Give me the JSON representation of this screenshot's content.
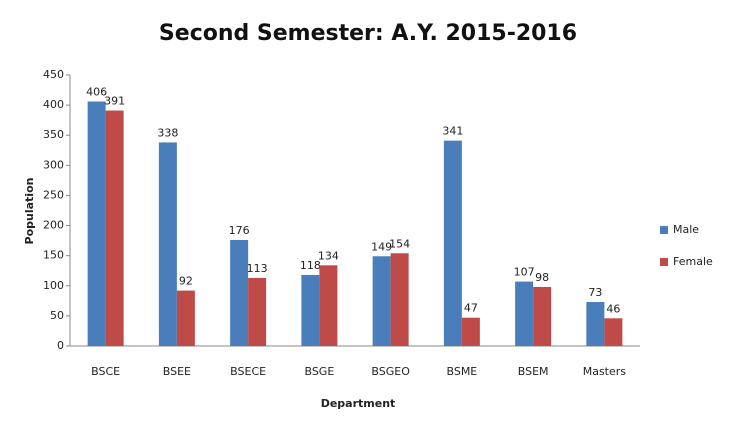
{
  "chart_data": {
    "type": "bar",
    "title": "Second Semester: A.Y. 2015-2016",
    "x_label": "Department",
    "y_label": "Population",
    "categories": [
      "BSCE",
      "BSEE",
      "BSECE",
      "BSGE",
      "BSGEO",
      "BSME",
      "BSEM",
      "Masters"
    ],
    "series": [
      {
        "name": "Male",
        "color": "#4a7ebb",
        "values": [
          406,
          338,
          176,
          118,
          149,
          341,
          107,
          73
        ]
      },
      {
        "name": "Female",
        "color": "#be4b48",
        "values": [
          391,
          92,
          113,
          134,
          154,
          47,
          98,
          46
        ]
      }
    ],
    "ylim": [
      0,
      450
    ],
    "yticks": [
      0,
      50,
      100,
      150,
      200,
      250,
      300,
      350,
      400,
      450
    ],
    "grid": false,
    "legend": "right"
  }
}
